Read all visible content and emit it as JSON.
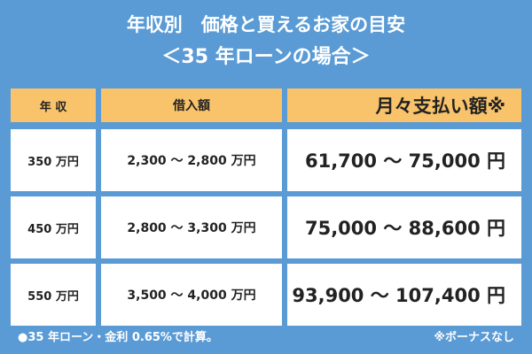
{
  "header": {
    "title": "年収別　価格と買えるお家の目安",
    "subtitle": "＜35 年ローンの場合＞"
  },
  "table": {
    "columns": [
      "年 収",
      "借入額",
      "月々支払い額※"
    ],
    "rows": [
      [
        "350 万円",
        "2,300 ～ 2,800 万円",
        "61,700 ～ 75,000 円"
      ],
      [
        "450 万円",
        "2,800 ～ 3,300 万円",
        "75,000 ～ 88,600 円"
      ],
      [
        "550 万円",
        "3,500 ～ 4,000 万円",
        "93,900 ～ 107,400 円"
      ]
    ]
  },
  "footer": {
    "note": "●35 年ローン・金利 0.65%で計算。",
    "remark": "※ボーナスなし"
  }
}
